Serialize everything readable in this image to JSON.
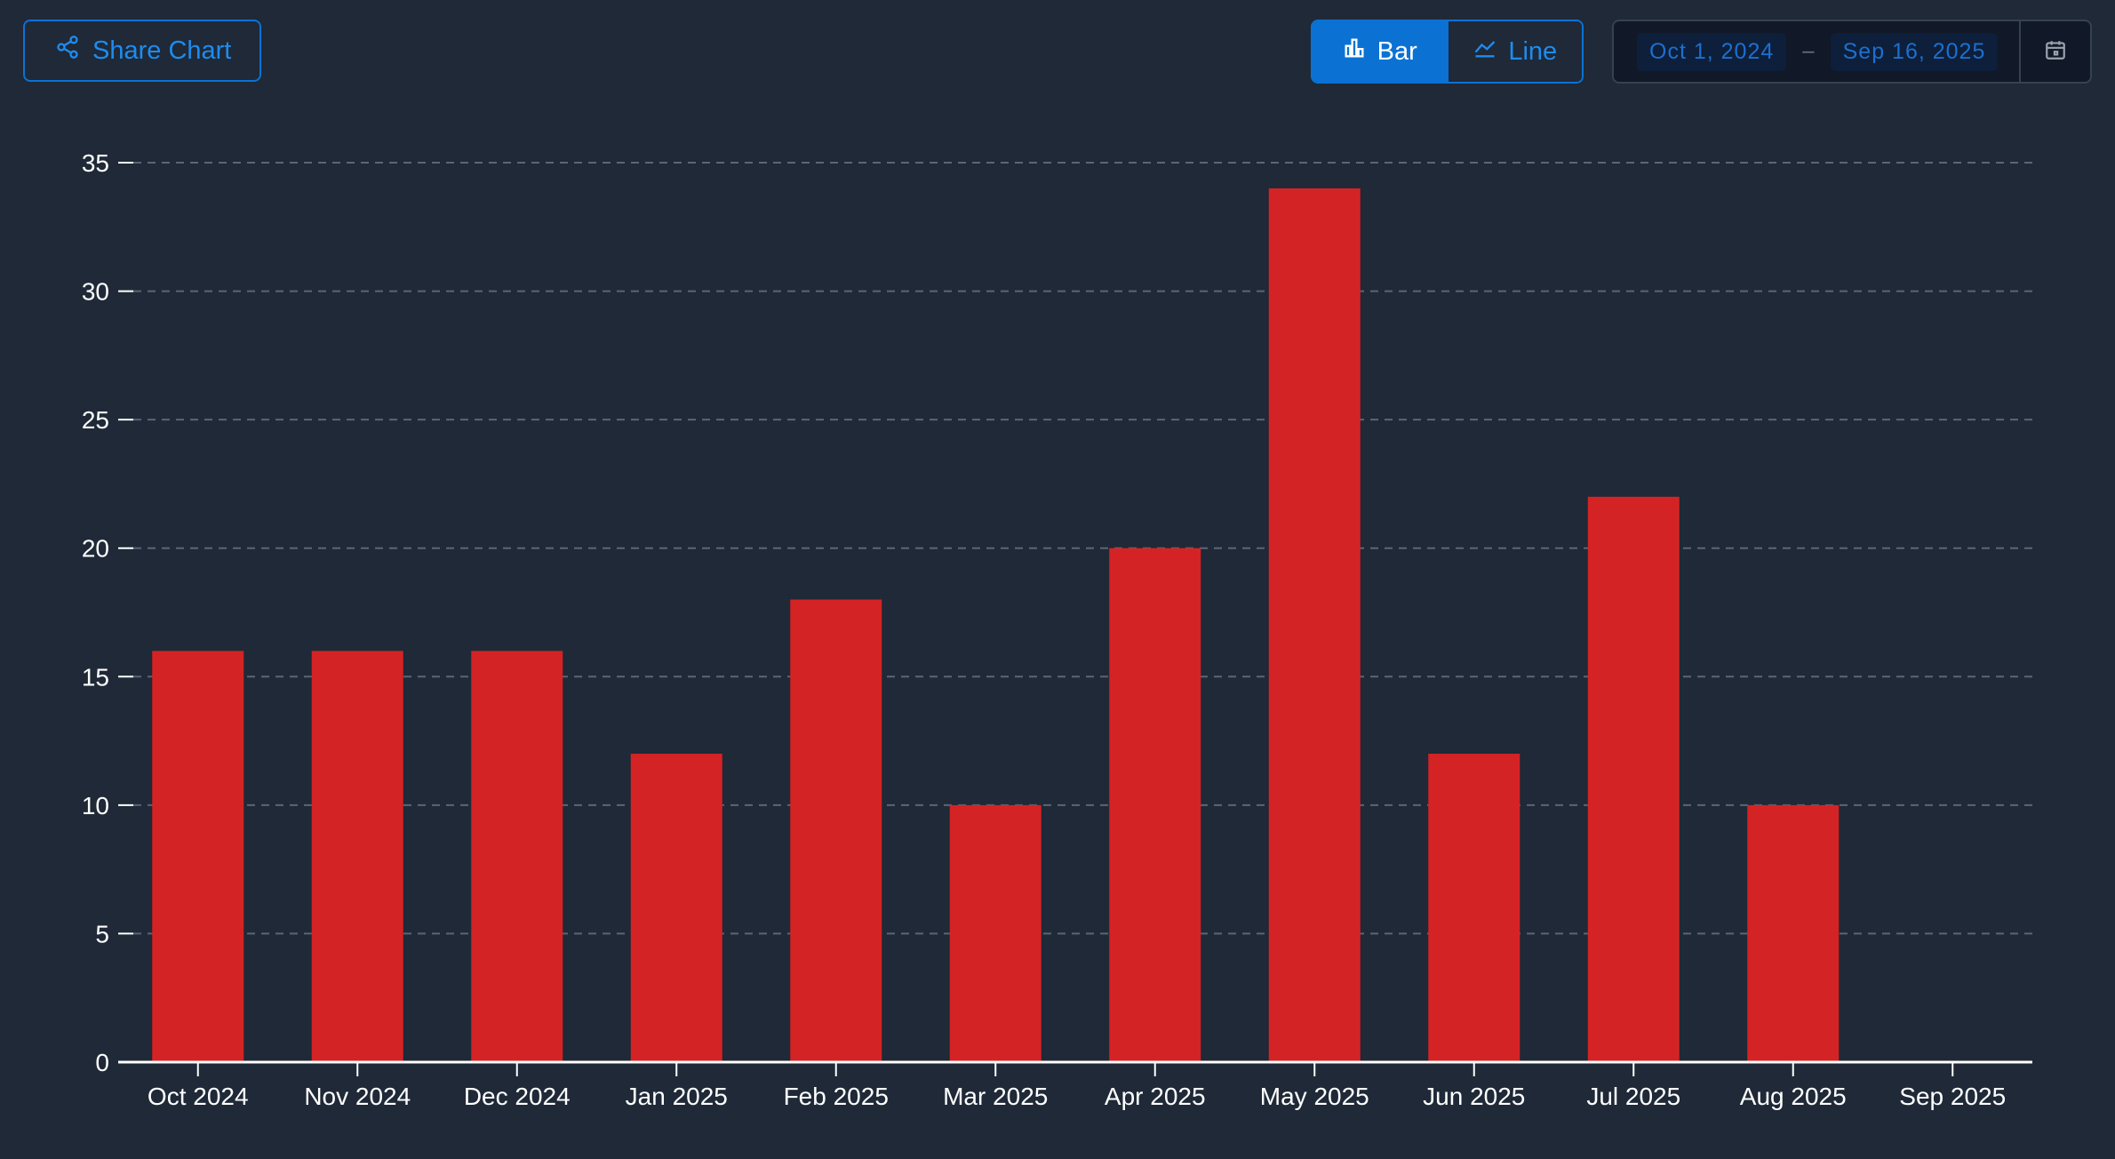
{
  "toolbar": {
    "share_label": "Share Chart",
    "toggle": {
      "bar_label": "Bar",
      "line_label": "Line",
      "active": "bar"
    },
    "date_range": {
      "start": "Oct 1, 2024",
      "separator": "–",
      "end": "Sep 16, 2025"
    },
    "icons": {
      "share": "share-icon",
      "bar": "bar-chart-icon",
      "line": "line-chart-icon",
      "calendar": "calendar-icon"
    }
  },
  "colors": {
    "background": "#1f2937",
    "accent": "#0b72d4",
    "bar": "#d42325",
    "grid": "#5b6573"
  },
  "chart_data": {
    "type": "bar",
    "categories": [
      "Oct 2024",
      "Nov 2024",
      "Dec 2024",
      "Jan 2025",
      "Feb 2025",
      "Mar 2025",
      "Apr 2025",
      "May 2025",
      "Jun 2025",
      "Jul 2025",
      "Aug 2025",
      "Sep 2025"
    ],
    "values": [
      16,
      16,
      16,
      12,
      18,
      10,
      20,
      34,
      12,
      22,
      10,
      0
    ],
    "yticks": [
      0,
      5,
      10,
      15,
      20,
      25,
      30,
      35
    ],
    "ylim": [
      0,
      35
    ],
    "title": "",
    "xlabel": "",
    "ylabel": "",
    "grid": true,
    "legend": "none"
  }
}
